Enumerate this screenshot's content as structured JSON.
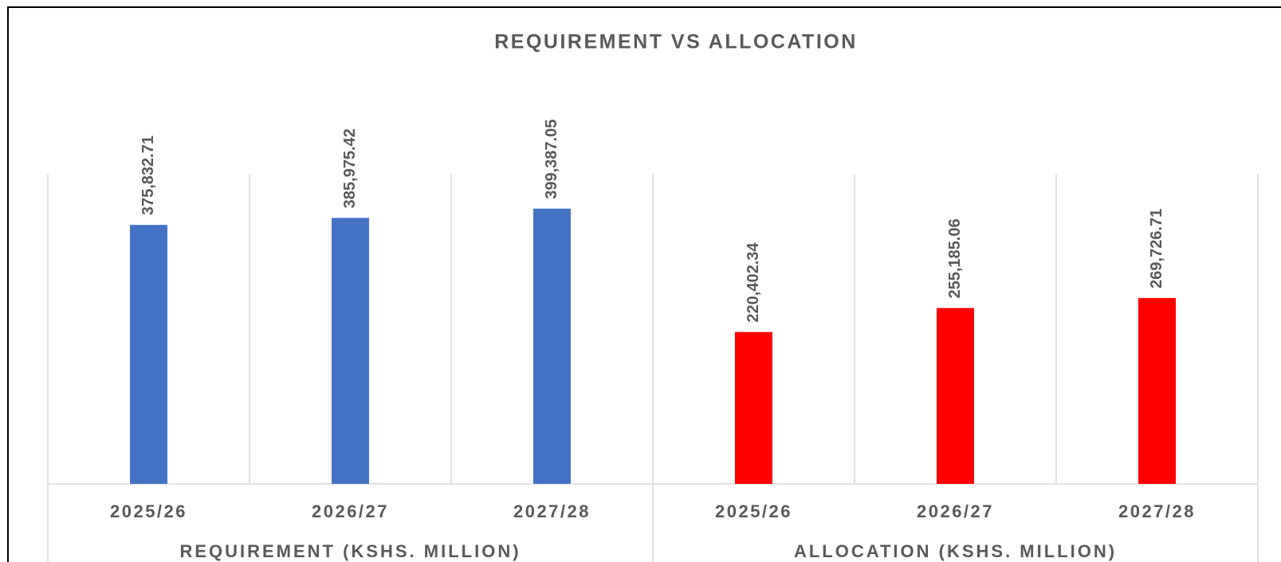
{
  "chart_data": {
    "type": "bar",
    "title": "REQUIREMENT VS ALLOCATION",
    "ylim": [
      0,
      450000
    ],
    "series": [
      {
        "name": "REQUIREMENT (KSHS. MILLION)",
        "color": "#4472c4",
        "categories": [
          "2025/26",
          "2026/27",
          "2027/28"
        ],
        "values": [
          375832.71,
          385975.42,
          399387.05
        ],
        "value_labels": [
          "375,832.71",
          "385,975.42",
          "399,387.05"
        ]
      },
      {
        "name": "ALLOCATION (KSHS. MILLION)",
        "color": "#ff0000",
        "categories": [
          "2025/26",
          "2026/27",
          "2027/28"
        ],
        "values": [
          220402.34,
          255185.06,
          269726.71
        ],
        "value_labels": [
          "220,402.34",
          "255,185.06",
          "269,726.71"
        ]
      }
    ]
  }
}
